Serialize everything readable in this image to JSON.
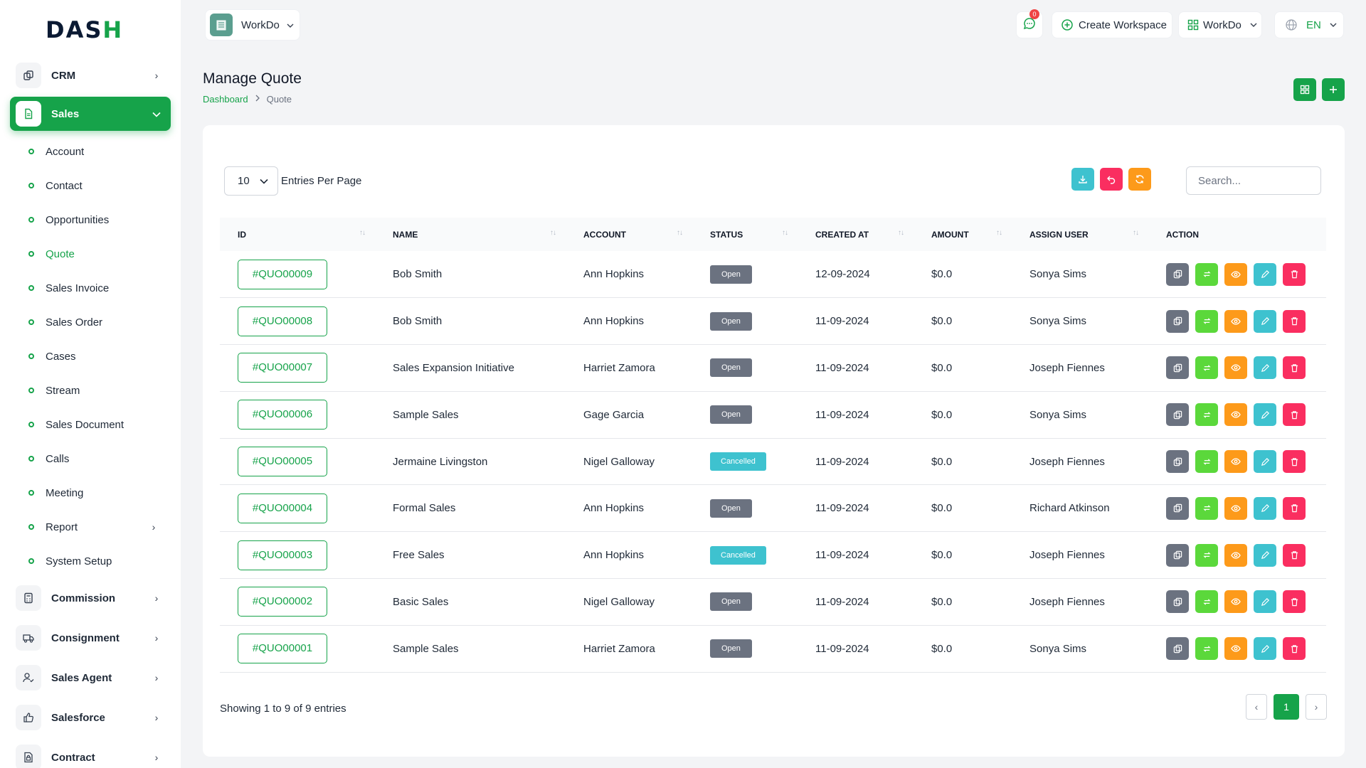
{
  "logo": {
    "text_main": "DAS",
    "text_accent": "H"
  },
  "sidebar": {
    "items": [
      {
        "label": "CRM",
        "icon": "copy-stack-icon",
        "active": false,
        "chevron": "›"
      },
      {
        "label": "Sales",
        "icon": "document-icon",
        "active": true,
        "chevron": "⌄"
      }
    ],
    "sub_items": [
      {
        "label": "Account"
      },
      {
        "label": "Contact"
      },
      {
        "label": "Opportunities"
      },
      {
        "label": "Quote",
        "active": true
      },
      {
        "label": "Sales Invoice"
      },
      {
        "label": "Sales Order"
      },
      {
        "label": "Cases"
      },
      {
        "label": "Stream"
      },
      {
        "label": "Sales Document"
      },
      {
        "label": "Calls"
      },
      {
        "label": "Meeting"
      },
      {
        "label": "Report",
        "chevron": "›"
      },
      {
        "label": "System Setup"
      }
    ],
    "bottom_items": [
      {
        "label": "Commission",
        "icon": "calculator-icon",
        "chevron": "›"
      },
      {
        "label": "Consignment",
        "icon": "truck-icon",
        "chevron": "›"
      },
      {
        "label": "Sales Agent",
        "icon": "user-check-icon",
        "chevron": "›"
      },
      {
        "label": "Salesforce",
        "icon": "thumbs-up-icon",
        "chevron": "›"
      },
      {
        "label": "Contract",
        "icon": "file-lock-icon",
        "chevron": "›"
      }
    ]
  },
  "topbar": {
    "workspace_name": "WorkDo",
    "notification_count": "0",
    "create_workspace": "Create Workspace",
    "workspace_menu": "WorkDo",
    "language": "EN"
  },
  "page": {
    "title": "Manage Quote",
    "breadcrumb": {
      "home": "Dashboard",
      "current": "Quote"
    }
  },
  "table_controls": {
    "entries_value": "10",
    "entries_label": "Entries Per Page",
    "search_placeholder": "Search..."
  },
  "table": {
    "columns": [
      "ID",
      "NAME",
      "ACCOUNT",
      "STATUS",
      "CREATED AT",
      "AMOUNT",
      "ASSIGN USER",
      "ACTION"
    ],
    "rows": [
      {
        "id": "#QUO00009",
        "name": "Bob Smith",
        "account": "Ann Hopkins",
        "status": "Open",
        "created": "12-09-2024",
        "amount": "$0.0",
        "user": "Sonya Sims"
      },
      {
        "id": "#QUO00008",
        "name": "Bob Smith",
        "account": "Ann Hopkins",
        "status": "Open",
        "created": "11-09-2024",
        "amount": "$0.0",
        "user": "Sonya Sims"
      },
      {
        "id": "#QUO00007",
        "name": "Sales Expansion Initiative",
        "account": "Harriet Zamora",
        "status": "Open",
        "created": "11-09-2024",
        "amount": "$0.0",
        "user": "Joseph Fiennes"
      },
      {
        "id": "#QUO00006",
        "name": "Sample Sales",
        "account": "Gage Garcia",
        "status": "Open",
        "created": "11-09-2024",
        "amount": "$0.0",
        "user": "Sonya Sims"
      },
      {
        "id": "#QUO00005",
        "name": "Jermaine Livingston",
        "account": "Nigel Galloway",
        "status": "Cancelled",
        "created": "11-09-2024",
        "amount": "$0.0",
        "user": "Joseph Fiennes"
      },
      {
        "id": "#QUO00004",
        "name": "Formal Sales",
        "account": "Ann Hopkins",
        "status": "Open",
        "created": "11-09-2024",
        "amount": "$0.0",
        "user": "Richard Atkinson"
      },
      {
        "id": "#QUO00003",
        "name": "Free Sales",
        "account": "Ann Hopkins",
        "status": "Cancelled",
        "created": "11-09-2024",
        "amount": "$0.0",
        "user": "Joseph Fiennes"
      },
      {
        "id": "#QUO00002",
        "name": "Basic Sales",
        "account": "Nigel Galloway",
        "status": "Open",
        "created": "11-09-2024",
        "amount": "$0.0",
        "user": "Joseph Fiennes"
      },
      {
        "id": "#QUO00001",
        "name": "Sample Sales",
        "account": "Harriet Zamora",
        "status": "Open",
        "created": "11-09-2024",
        "amount": "$0.0",
        "user": "Sonya Sims"
      }
    ]
  },
  "footer": {
    "showing": "Showing 1 to 9 of 9 entries",
    "prev": "‹",
    "current_page": "1",
    "next": "›"
  },
  "colors": {
    "primary": "#16a34a",
    "status_open": "#6b7280",
    "status_cancelled": "#3ec2cf",
    "action_copy": "#6b7280",
    "action_convert": "#5bd83b",
    "action_view": "#fd9a1a",
    "action_edit": "#3ec2cf",
    "action_delete": "#fa2e60"
  }
}
